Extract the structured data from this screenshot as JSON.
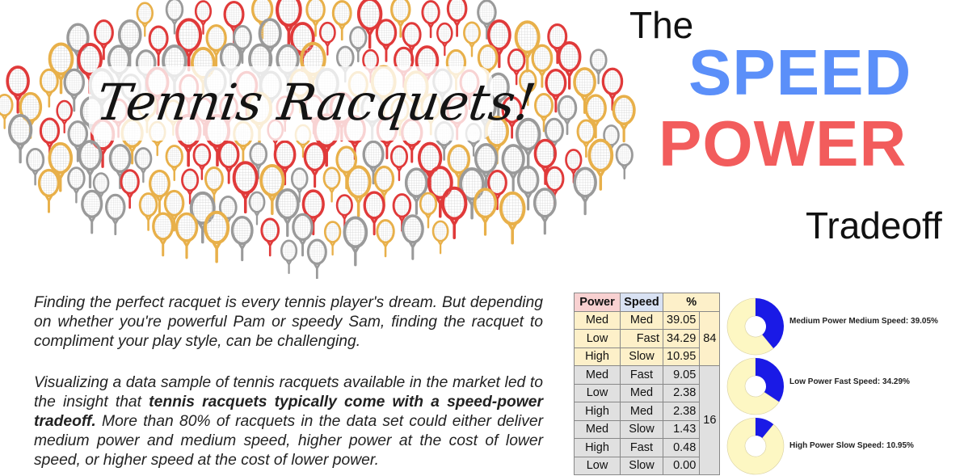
{
  "banner": {
    "title": "Tennis Racquets!"
  },
  "heading": {
    "the": "The",
    "speed": "SPEED",
    "power": "POWER",
    "tradeoff": "Tradeoff"
  },
  "paragraphs": {
    "p1": "Finding the perfect racquet is every tennis player's dream. But depending on whether you're powerful Pam or speedy Sam, finding the racquet to compliment your play style, can be challenging.",
    "p2_a": "Visualizing a data sample of tennis racquets available in the market led to the insight that ",
    "p2_bold": "tennis racquets typically come with a speed-power tradeoff.",
    "p2_b": " More than 80% of racquets in the data set could either deliver medium power and medium speed, higher power at the cost of lower speed, or higher speed at the cost of lower power."
  },
  "table": {
    "headers": [
      "Power",
      "Speed",
      "%"
    ],
    "rows": [
      {
        "power": "Med",
        "speed": "Med",
        "pct": "39.05"
      },
      {
        "power": "Low",
        "speed": "Fast",
        "pct": "34.29"
      },
      {
        "power": "High",
        "speed": "Slow",
        "pct": "10.95"
      },
      {
        "power": "Med",
        "speed": "Fast",
        "pct": "9.05"
      },
      {
        "power": "Low",
        "speed": "Med",
        "pct": "2.38"
      },
      {
        "power": "High",
        "speed": "Med",
        "pct": "2.38"
      },
      {
        "power": "Med",
        "speed": "Slow",
        "pct": "1.43"
      },
      {
        "power": "High",
        "speed": "Fast",
        "pct": "0.48"
      },
      {
        "power": "Low",
        "speed": "Slow",
        "pct": "0.00"
      }
    ],
    "group_top": "84",
    "group_bottom": "16"
  },
  "donuts": [
    {
      "label": "Medium Power Medium Speed: 39.05%",
      "fraction": 0.3905
    },
    {
      "label": "Low Power Fast Speed: 34.29%",
      "fraction": 0.3429
    },
    {
      "label": "High Power Slow Speed: 10.95%",
      "fraction": 0.1095
    }
  ],
  "colors": {
    "speed_blue": "#5b8ff9",
    "power_red": "#f25c5c",
    "donut_fill": "#1a1ae6",
    "donut_rest": "#fdf7c3",
    "racquet_red": "#e03a3a",
    "racquet_gold": "#e8b04a",
    "racquet_grey": "#9a9a9a"
  }
}
